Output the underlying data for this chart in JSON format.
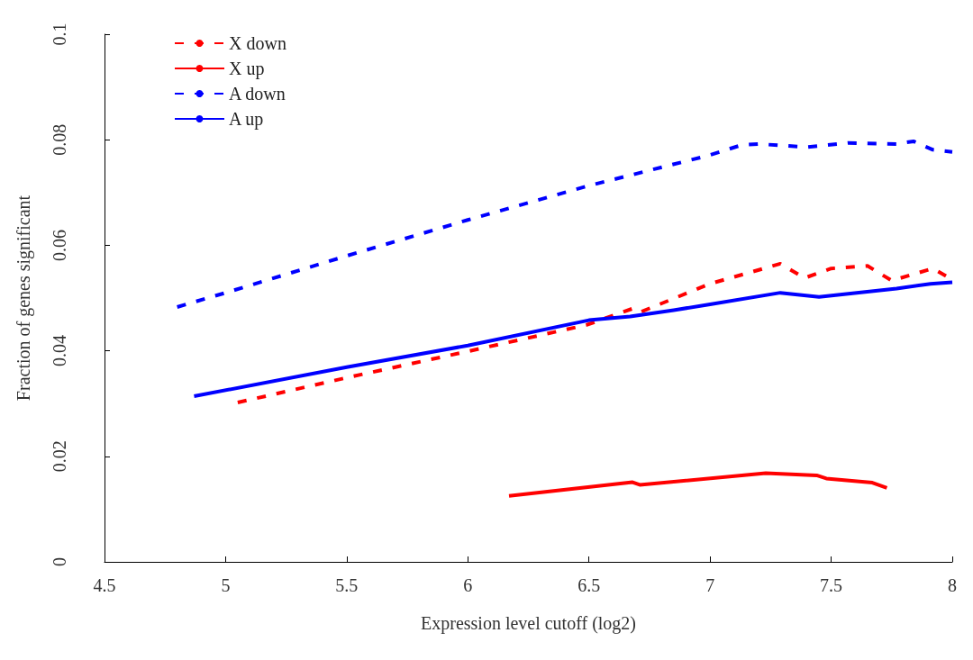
{
  "chart_data": {
    "type": "line",
    "xlabel": "Expression level cutoff (log2)",
    "ylabel": "Fraction of genes significant",
    "xlim": [
      4.5,
      8
    ],
    "xticks": [
      4.5,
      5,
      5.5,
      6,
      6.5,
      7,
      7.5,
      8
    ],
    "ylim": [
      0,
      0.1
    ],
    "yticks": [
      0,
      0.02,
      0.04,
      0.06,
      0.08,
      0.1
    ],
    "grid": false,
    "legend": "top left",
    "marker": "none",
    "series": [
      {
        "name": "X down",
        "color": "#ff0000",
        "line_style": "dashed",
        "x": [
          5.05,
          5.5,
          6.0,
          6.49,
          6.68,
          6.71,
          7.0,
          7.29,
          7.39,
          7.5,
          7.65,
          7.75,
          7.92,
          8.0
        ],
        "values": [
          0.0302,
          0.0349,
          0.0399,
          0.0449,
          0.048,
          0.0473,
          0.0527,
          0.0565,
          0.0538,
          0.0556,
          0.0561,
          0.0533,
          0.0556,
          0.0535
        ]
      },
      {
        "name": "X up",
        "color": "#ff0000",
        "line_style": "solid",
        "x": [
          6.17,
          6.68,
          6.71,
          7.23,
          7.44,
          7.48,
          7.67,
          7.73
        ],
        "values": [
          0.0125,
          0.0151,
          0.0146,
          0.0168,
          0.0164,
          0.0158,
          0.015,
          0.014
        ]
      },
      {
        "name": "A down",
        "color": "#0000ff",
        "line_style": "dashed",
        "x": [
          4.8,
          5.0,
          5.5,
          6.0,
          6.5,
          7.0,
          7.13,
          7.2,
          7.4,
          7.57,
          7.77,
          7.84,
          7.92,
          8.0
        ],
        "values": [
          0.0483,
          0.051,
          0.058,
          0.0648,
          0.0713,
          0.0771,
          0.079,
          0.0792,
          0.0786,
          0.0794,
          0.0792,
          0.0797,
          0.0781,
          0.0777
        ]
      },
      {
        "name": "A up",
        "color": "#0000ff",
        "line_style": "solid",
        "x": [
          4.87,
          5.5,
          6.0,
          6.5,
          6.67,
          6.85,
          7.0,
          7.29,
          7.45,
          7.77,
          7.91,
          8.0
        ],
        "values": [
          0.0314,
          0.0369,
          0.041,
          0.0458,
          0.0465,
          0.0477,
          0.0488,
          0.051,
          0.0502,
          0.0518,
          0.0527,
          0.053
        ]
      }
    ]
  }
}
